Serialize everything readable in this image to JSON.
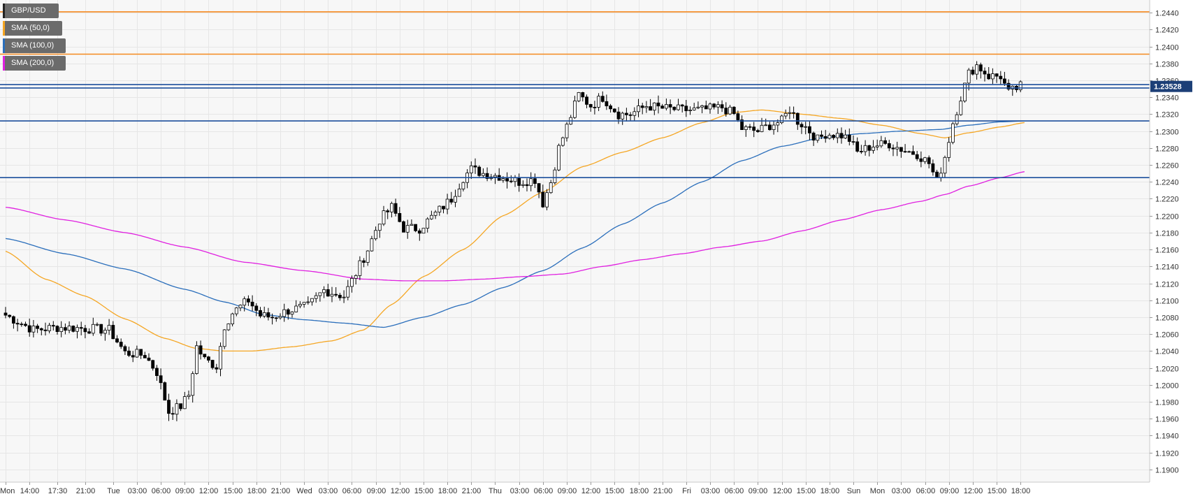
{
  "chart_data": {
    "type": "candlestick",
    "symbol": "GBP/USD",
    "timeframe_note": "hourly candles",
    "ylim": [
      1.1885,
      1.2455
    ],
    "y_ticks": [
      "1.2440",
      "1.2420",
      "1.2400",
      "1.2380",
      "1.2360",
      "1.2340",
      "1.2320",
      "1.2300",
      "1.2280",
      "1.2260",
      "1.2240",
      "1.2220",
      "1.2200",
      "1.2180",
      "1.2160",
      "1.2140",
      "1.2120",
      "1.2100",
      "1.2080",
      "1.2060",
      "1.2040",
      "1.2020",
      "1.2000",
      "1.1980",
      "1.1960",
      "1.1940",
      "1.1920",
      "1.1900"
    ],
    "x_ticks": [
      {
        "label": "Mon",
        "i": 0
      },
      {
        "label": "14:00",
        "i": 6
      },
      {
        "label": "17:30",
        "i": 13
      },
      {
        "label": "21:00",
        "i": 20
      },
      {
        "label": "Tue",
        "i": 27
      },
      {
        "label": "03:00",
        "i": 33
      },
      {
        "label": "06:00",
        "i": 39
      },
      {
        "label": "09:00",
        "i": 45
      },
      {
        "label": "12:00",
        "i": 51
      },
      {
        "label": "15:00",
        "i": 57
      },
      {
        "label": "18:00",
        "i": 63
      },
      {
        "label": "21:00",
        "i": 69
      },
      {
        "label": "Wed",
        "i": 75
      },
      {
        "label": "03:00",
        "i": 81
      },
      {
        "label": "06:00",
        "i": 87
      },
      {
        "label": "09:00",
        "i": 93
      },
      {
        "label": "12:00",
        "i": 99
      },
      {
        "label": "15:00",
        "i": 105
      },
      {
        "label": "18:00",
        "i": 111
      },
      {
        "label": "21:00",
        "i": 117
      },
      {
        "label": "Thu",
        "i": 123
      },
      {
        "label": "03:00",
        "i": 129
      },
      {
        "label": "06:00",
        "i": 135
      },
      {
        "label": "09:00",
        "i": 141
      },
      {
        "label": "12:00",
        "i": 147
      },
      {
        "label": "15:00",
        "i": 153
      },
      {
        "label": "18:00",
        "i": 159
      },
      {
        "label": "21:00",
        "i": 165
      },
      {
        "label": "Fri",
        "i": 171
      },
      {
        "label": "03:00",
        "i": 177
      },
      {
        "label": "06:00",
        "i": 183
      },
      {
        "label": "09:00",
        "i": 189
      },
      {
        "label": "12:00",
        "i": 195
      },
      {
        "label": "15:00",
        "i": 201
      },
      {
        "label": "18:00",
        "i": 207
      },
      {
        "label": "Sun",
        "i": 213
      },
      {
        "label": "Mon",
        "i": 219
      },
      {
        "label": "03:00",
        "i": 225
      },
      {
        "label": "06:00",
        "i": 231
      },
      {
        "label": "09:00",
        "i": 237
      },
      {
        "label": "12:00",
        "i": 243
      },
      {
        "label": "15:00",
        "i": 249
      },
      {
        "label": "18:00",
        "i": 255
      }
    ],
    "n_candles": 256,
    "anchors_close": [
      [
        0,
        1.2085
      ],
      [
        8,
        1.2065
      ],
      [
        14,
        1.2068
      ],
      [
        20,
        1.2067
      ],
      [
        27,
        1.2065
      ],
      [
        31,
        1.2038
      ],
      [
        36,
        1.2035
      ],
      [
        39,
        1.2015
      ],
      [
        42,
        1.1968
      ],
      [
        45,
        1.1975
      ],
      [
        47,
        1.1988
      ],
      [
        49,
        1.2045
      ],
      [
        51,
        1.203
      ],
      [
        54,
        1.2022
      ],
      [
        56,
        1.207
      ],
      [
        58,
        1.2085
      ],
      [
        62,
        1.21
      ],
      [
        65,
        1.2082
      ],
      [
        68,
        1.208
      ],
      [
        72,
        1.2088
      ],
      [
        77,
        1.2093
      ],
      [
        81,
        1.2112
      ],
      [
        86,
        1.2105
      ],
      [
        89,
        1.2132
      ],
      [
        92,
        1.216
      ],
      [
        95,
        1.2195
      ],
      [
        98,
        1.221
      ],
      [
        101,
        1.2185
      ],
      [
        105,
        1.2185
      ],
      [
        108,
        1.2198
      ],
      [
        113,
        1.222
      ],
      [
        116,
        1.2245
      ],
      [
        118,
        1.2255
      ],
      [
        121,
        1.225
      ],
      [
        125,
        1.2247
      ],
      [
        130,
        1.224
      ],
      [
        134,
        1.2243
      ],
      [
        136,
        1.2215
      ],
      [
        138,
        1.224
      ],
      [
        140,
        1.228
      ],
      [
        143,
        1.2318
      ],
      [
        145,
        1.2343
      ],
      [
        148,
        1.233
      ],
      [
        151,
        1.234
      ],
      [
        155,
        1.232
      ],
      [
        158,
        1.232
      ],
      [
        162,
        1.233
      ],
      [
        166,
        1.2327
      ],
      [
        171,
        1.2325
      ],
      [
        176,
        1.2325
      ],
      [
        181,
        1.2328
      ],
      [
        184,
        1.232
      ],
      [
        186,
        1.2303
      ],
      [
        190,
        1.23
      ],
      [
        193,
        1.2307
      ],
      [
        196,
        1.2312
      ],
      [
        198,
        1.2326
      ],
      [
        200,
        1.2312
      ],
      [
        202,
        1.2305
      ],
      [
        205,
        1.229
      ],
      [
        207,
        1.2297
      ],
      [
        211,
        1.2295
      ],
      [
        213,
        1.229
      ],
      [
        215,
        1.2275
      ],
      [
        219,
        1.2283
      ],
      [
        223,
        1.2285
      ],
      [
        227,
        1.2277
      ],
      [
        230,
        1.2273
      ],
      [
        233,
        1.2262
      ],
      [
        235,
        1.224
      ],
      [
        237,
        1.227
      ],
      [
        239,
        1.231
      ],
      [
        241,
        1.234
      ],
      [
        243,
        1.2368
      ],
      [
        245,
        1.2378
      ],
      [
        248,
        1.2365
      ],
      [
        251,
        1.2365
      ],
      [
        253,
        1.2345
      ],
      [
        256,
        1.2353
      ]
    ],
    "sma": [
      {
        "name": "SMA (50,0)",
        "color": "#f5a623",
        "points": [
          [
            0,
            1.2158
          ],
          [
            10,
            1.2125
          ],
          [
            20,
            1.2105
          ],
          [
            30,
            1.2078
          ],
          [
            40,
            1.2055
          ],
          [
            48,
            1.2043
          ],
          [
            55,
            1.204
          ],
          [
            62,
            1.204
          ],
          [
            72,
            1.2045
          ],
          [
            82,
            1.2052
          ],
          [
            90,
            1.2065
          ],
          [
            97,
            1.2095
          ],
          [
            105,
            1.2128
          ],
          [
            115,
            1.216
          ],
          [
            125,
            1.22
          ],
          [
            135,
            1.2228
          ],
          [
            145,
            1.2258
          ],
          [
            155,
            1.2275
          ],
          [
            165,
            1.2292
          ],
          [
            175,
            1.231
          ],
          [
            183,
            1.2322
          ],
          [
            190,
            1.2325
          ],
          [
            200,
            1.232
          ],
          [
            210,
            1.2315
          ],
          [
            220,
            1.2307
          ],
          [
            230,
            1.2297
          ],
          [
            236,
            1.2292
          ],
          [
            242,
            1.2298
          ],
          [
            250,
            1.2305
          ],
          [
            256,
            1.231
          ]
        ]
      },
      {
        "name": "SMA (100,0)",
        "color": "#2a6ebb",
        "points": [
          [
            0,
            1.2173
          ],
          [
            15,
            1.2155
          ],
          [
            30,
            1.2137
          ],
          [
            45,
            1.2113
          ],
          [
            55,
            1.2098
          ],
          [
            65,
            1.2083
          ],
          [
            75,
            1.2077
          ],
          [
            85,
            1.2073
          ],
          [
            95,
            1.2068
          ],
          [
            105,
            1.208
          ],
          [
            115,
            1.2095
          ],
          [
            125,
            1.2115
          ],
          [
            135,
            1.2135
          ],
          [
            145,
            1.2162
          ],
          [
            155,
            1.219
          ],
          [
            165,
            1.2215
          ],
          [
            175,
            1.224
          ],
          [
            185,
            1.2265
          ],
          [
            195,
            1.2282
          ],
          [
            205,
            1.2292
          ],
          [
            215,
            1.2297
          ],
          [
            225,
            1.23
          ],
          [
            235,
            1.2302
          ],
          [
            242,
            1.2307
          ],
          [
            250,
            1.2311
          ],
          [
            256,
            1.2312
          ]
        ]
      },
      {
        "name": "SMA (200,0)",
        "color": "#e020e0",
        "points": [
          [
            0,
            1.221
          ],
          [
            15,
            1.2195
          ],
          [
            30,
            1.218
          ],
          [
            45,
            1.2163
          ],
          [
            60,
            1.2145
          ],
          [
            75,
            1.2135
          ],
          [
            90,
            1.2125
          ],
          [
            100,
            1.2123
          ],
          [
            110,
            1.2123
          ],
          [
            120,
            1.2125
          ],
          [
            130,
            1.2128
          ],
          [
            140,
            1.2131
          ],
          [
            150,
            1.214
          ],
          [
            160,
            1.2148
          ],
          [
            170,
            1.2155
          ],
          [
            180,
            1.2163
          ],
          [
            190,
            1.217
          ],
          [
            200,
            1.2182
          ],
          [
            210,
            1.2195
          ],
          [
            220,
            1.2207
          ],
          [
            230,
            1.2217
          ],
          [
            236,
            1.2225
          ],
          [
            242,
            1.2235
          ],
          [
            250,
            1.2245
          ],
          [
            256,
            1.2252
          ]
        ]
      }
    ],
    "hlines": [
      {
        "value": 1.2441,
        "color": "#f5891f"
      },
      {
        "value": 1.2391,
        "color": "#f5891f"
      },
      {
        "value": 1.2355,
        "color": "#1c4f9c"
      },
      {
        "value": 1.2351,
        "color": "#1c4f9c"
      },
      {
        "value": 1.2312,
        "color": "#1c4f9c"
      },
      {
        "value": 1.2245,
        "color": "#1c4f9c"
      }
    ],
    "last_price": {
      "label": "1.23528",
      "value": 1.23528,
      "bg": "#1c3f77"
    },
    "legend": [
      {
        "label": "GBP/USD",
        "color": "#222222"
      },
      {
        "label": "SMA (50,0)",
        "color": "#f5a623"
      },
      {
        "label": "SMA (100,0)",
        "color": "#2a6ebb"
      },
      {
        "label": "SMA (200,0)",
        "color": "#e020e0"
      }
    ],
    "colors": {
      "bull_fill": "#ffffff",
      "bear_fill": "#000000",
      "wick": "#000000",
      "grid": "#e6e6e6",
      "plot_bg": "#f7f7f7"
    }
  }
}
